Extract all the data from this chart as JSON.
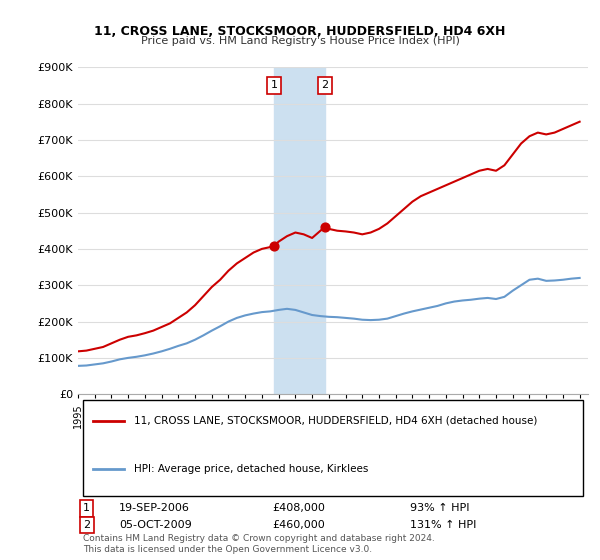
{
  "title": "11, CROSS LANE, STOCKSMOOR, HUDDERSFIELD, HD4 6XH",
  "subtitle": "Price paid vs. HM Land Registry's House Price Index (HPI)",
  "red_label": "11, CROSS LANE, STOCKSMOOR, HUDDERSFIELD, HD4 6XH (detached house)",
  "blue_label": "HPI: Average price, detached house, Kirklees",
  "sale1_label": "1",
  "sale1_date": "19-SEP-2006",
  "sale1_price": "£408,000",
  "sale1_hpi": "93% ↑ HPI",
  "sale2_label": "2",
  "sale2_date": "05-OCT-2009",
  "sale2_price": "£460,000",
  "sale2_hpi": "131% ↑ HPI",
  "footer": "Contains HM Land Registry data © Crown copyright and database right 2024.\nThis data is licensed under the Open Government Licence v3.0.",
  "ylim": [
    0,
    900000
  ],
  "yticks": [
    0,
    100000,
    200000,
    300000,
    400000,
    500000,
    600000,
    700000,
    800000,
    900000
  ],
  "ytick_labels": [
    "£0",
    "£100K",
    "£200K",
    "£300K",
    "£400K",
    "£500K",
    "£600K",
    "£700K",
    "£800K",
    "£900K"
  ],
  "xlim_start": 1995.0,
  "xlim_end": 2025.5,
  "highlight_x1": 2006.72,
  "highlight_x2": 2009.75,
  "sale1_x": 2006.72,
  "sale1_y": 408000,
  "sale2_x": 2009.75,
  "sale2_y": 460000,
  "red_color": "#cc0000",
  "blue_color": "#6699cc",
  "highlight_color": "#cce0f0",
  "background_color": "#ffffff",
  "grid_color": "#dddddd"
}
